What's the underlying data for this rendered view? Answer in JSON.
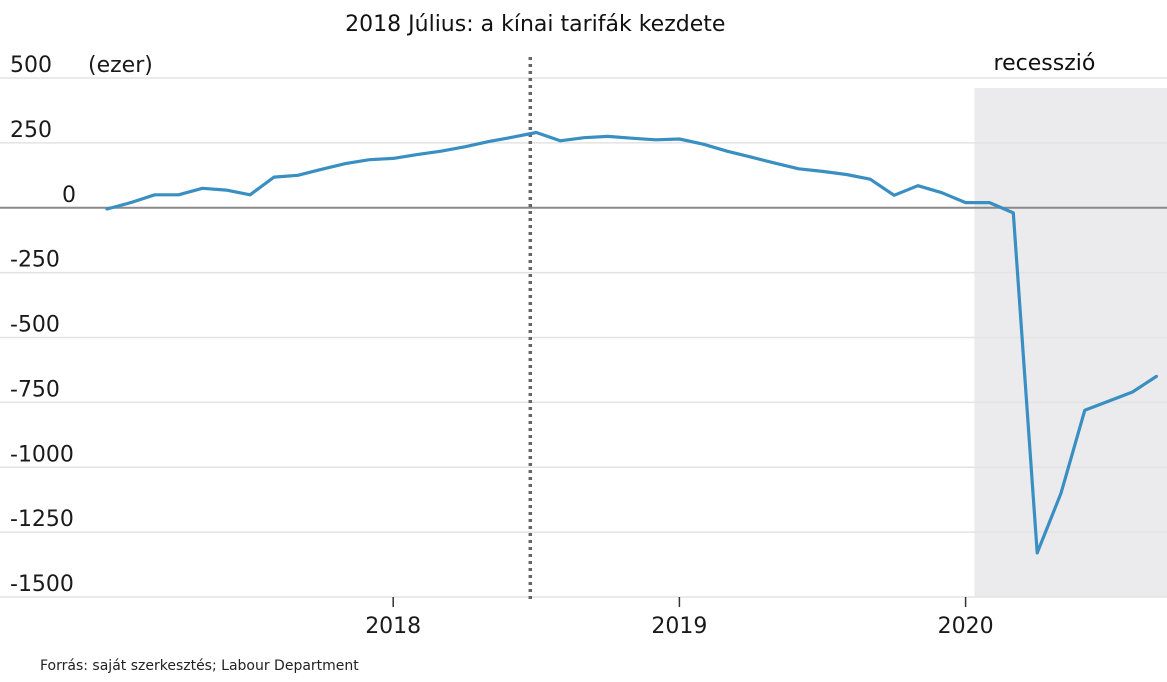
{
  "chart_data": {
    "type": "line",
    "title": "2018 Július: a kínai tarifák kezdete",
    "ylabel": "",
    "y_unit": "(ezer)",
    "ylim": [
      -1500,
      500
    ],
    "yticks": [
      500,
      250,
      0,
      -250,
      -500,
      -750,
      -1000,
      -1250,
      -1500
    ],
    "ytick_labels": [
      "500",
      "250",
      "0",
      "-250",
      "-500",
      "-750",
      "-1000",
      "-1250",
      "-1500"
    ],
    "xlim": [
      "2017-01",
      "2020-09"
    ],
    "xticks": [
      "2018-01",
      "2019-01",
      "2020-01"
    ],
    "xtick_labels": [
      "2018",
      "2019",
      "2020"
    ],
    "grid": true,
    "annotations": [
      {
        "type": "vline",
        "x": "2018-07",
        "style": "dotted",
        "label": "2018 Július: a kínai tarifák kezdete"
      },
      {
        "type": "shaded-region",
        "x_start": "2020-02",
        "x_end": "2020-09",
        "label": "recesszió"
      }
    ],
    "series": [
      {
        "color": "#3a8fc2",
        "x": [
          "2017-01",
          "2017-02",
          "2017-03",
          "2017-04",
          "2017-05",
          "2017-06",
          "2017-07",
          "2017-08",
          "2017-09",
          "2017-10",
          "2017-11",
          "2017-12",
          "2018-01",
          "2018-02",
          "2018-03",
          "2018-04",
          "2018-05",
          "2018-06",
          "2018-07",
          "2018-08",
          "2018-09",
          "2018-10",
          "2018-11",
          "2018-12",
          "2019-01",
          "2019-02",
          "2019-03",
          "2019-04",
          "2019-05",
          "2019-06",
          "2019-07",
          "2019-08",
          "2019-09",
          "2019-10",
          "2019-11",
          "2019-12",
          "2020-01",
          "2020-02",
          "2020-03",
          "2020-04",
          "2020-05",
          "2020-06",
          "2020-07",
          "2020-08",
          "2020-09"
        ],
        "values": [
          -5,
          20,
          50,
          50,
          75,
          68,
          50,
          118,
          125,
          148,
          170,
          185,
          190,
          205,
          218,
          235,
          255,
          272,
          290,
          258,
          270,
          275,
          268,
          262,
          265,
          245,
          218,
          195,
          172,
          150,
          140,
          128,
          110,
          48,
          85,
          58,
          20,
          20,
          -20,
          -1330,
          -1100,
          -780,
          -745,
          -710,
          -650
        ]
      }
    ]
  },
  "recession_label": "recesszió",
  "source": "Forrás: saját szerkesztés; Labour Department"
}
